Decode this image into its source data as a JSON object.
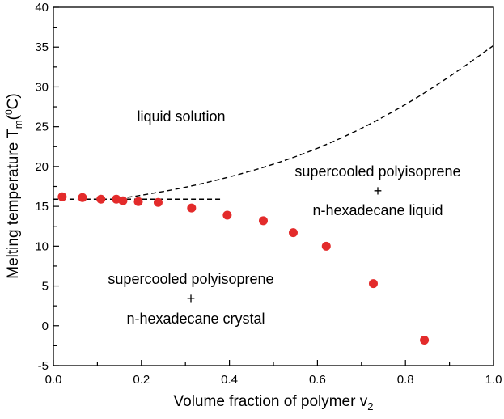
{
  "chart_data": {
    "type": "scatter",
    "xlabel": "Volume fraction of polymer v",
    "xlabel_sub": "2",
    "ylabel": "Melting temperature T",
    "ylabel_sub": "m",
    "ylabel_paren_open": "(",
    "ylabel_sup": "0",
    "ylabel_unit": "C)",
    "xlim": [
      0.0,
      1.0
    ],
    "ylim": [
      -5,
      40
    ],
    "xticks": [
      0.0,
      0.2,
      0.4,
      0.6,
      0.8,
      1.0
    ],
    "xtick_labels": [
      "0.0",
      "0.2",
      "0.4",
      "0.6",
      "0.8",
      "1.0"
    ],
    "yticks": [
      -5,
      0,
      5,
      10,
      15,
      20,
      25,
      30,
      35,
      40
    ],
    "ytick_labels": [
      "-5",
      "0",
      "5",
      "10",
      "15",
      "20",
      "25",
      "30",
      "35",
      "40"
    ],
    "grid": false,
    "marker_color": "#e32b2b",
    "series": [
      {
        "style": "markers",
        "points": [
          {
            "x": 0.02,
            "y": 16.2
          },
          {
            "x": 0.066,
            "y": 16.1
          },
          {
            "x": 0.108,
            "y": 15.9
          },
          {
            "x": 0.143,
            "y": 15.9
          },
          {
            "x": 0.158,
            "y": 15.7
          },
          {
            "x": 0.193,
            "y": 15.6
          },
          {
            "x": 0.238,
            "y": 15.5
          },
          {
            "x": 0.314,
            "y": 14.8
          },
          {
            "x": 0.395,
            "y": 13.9
          },
          {
            "x": 0.477,
            "y": 13.2
          },
          {
            "x": 0.545,
            "y": 11.7
          },
          {
            "x": 0.62,
            "y": 10.0
          },
          {
            "x": 0.727,
            "y": 5.3
          },
          {
            "x": 0.843,
            "y": -1.8
          }
        ]
      },
      {
        "style": "dashed-curve",
        "points": [
          {
            "x": 0.15,
            "y": 16.0
          },
          {
            "x": 0.2,
            "y": 16.4
          },
          {
            "x": 0.3,
            "y": 17.4
          },
          {
            "x": 0.4,
            "y": 18.7
          },
          {
            "x": 0.5,
            "y": 20.3
          },
          {
            "x": 0.6,
            "y": 22.3
          },
          {
            "x": 0.7,
            "y": 24.8
          },
          {
            "x": 0.8,
            "y": 27.8
          },
          {
            "x": 0.9,
            "y": 31.3
          },
          {
            "x": 1.0,
            "y": 35.2
          }
        ]
      },
      {
        "style": "dashed-line",
        "points": [
          {
            "x": 0.0,
            "y": 15.9
          },
          {
            "x": 0.38,
            "y": 15.9
          }
        ]
      }
    ],
    "annotations": {
      "liquid": "liquid solution",
      "right_line1": "supercooled polyisoprene",
      "right_plus": "+",
      "right_line2": "n-hexadecane liquid",
      "left_line1": "supercooled polyisoprene",
      "left_plus": "+",
      "left_line2": "n-hexadecane crystal"
    }
  }
}
